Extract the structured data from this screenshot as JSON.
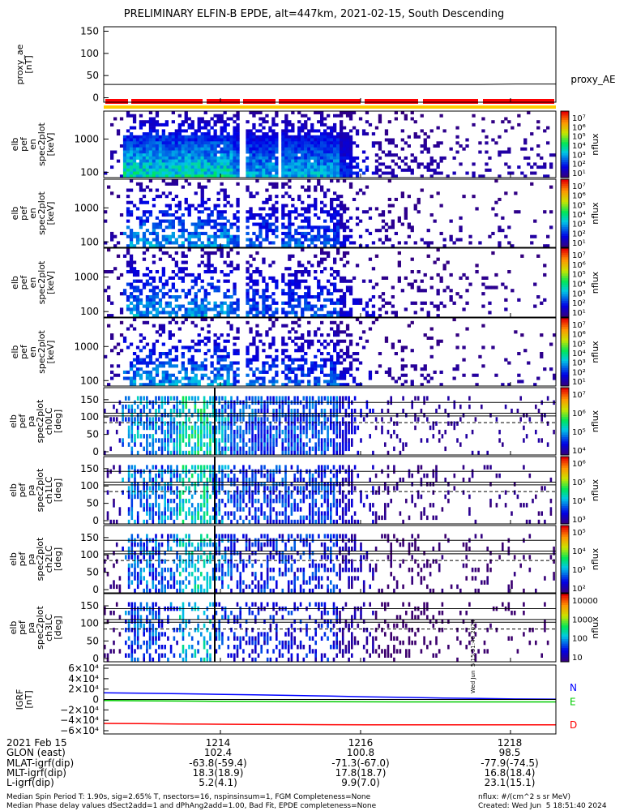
{
  "title": "PRELIMINARY ELFIN-B EPDE, alt=447km, 2021-02-15, South Descending",
  "chart_data": {
    "type": "heatmap",
    "title": "PRELIMINARY ELFIN-B EPDE, alt=447km, 2021-02-15, South Descending",
    "x_ticks": [
      "1214",
      "1216",
      "1218"
    ],
    "panels": [
      {
        "id": "proxy_ae",
        "type": "line",
        "ylabel": [
          "proxy_ae",
          "[nT]"
        ],
        "yticks": [
          "150",
          "100",
          "50",
          "0"
        ],
        "ylim": [
          -10,
          160
        ],
        "legend": "proxy_AE",
        "series": [
          {
            "name": "proxy_AE",
            "values": [
              30,
              30,
              30,
              30,
              30,
              30,
              30,
              30,
              30,
              30,
              30,
              31,
              31
            ]
          }
        ]
      },
      {
        "id": "en1",
        "type": "heatmap",
        "ylabel": [
          "elb",
          "pef",
          "en",
          "spec2plot",
          "[keV]"
        ],
        "yticks": [
          "1000",
          "100"
        ],
        "yscale": "log",
        "zlabel": "nflux",
        "zticks": [
          "10⁷",
          "10⁶",
          "10⁵",
          "10⁴",
          "10³",
          "10²",
          "10¹"
        ]
      },
      {
        "id": "en2",
        "type": "heatmap",
        "ylabel": [
          "elb",
          "pef",
          "en",
          "spec2plot",
          "[keV]"
        ],
        "yticks": [
          "1000",
          "100"
        ],
        "yscale": "log",
        "zlabel": "nflux",
        "zticks": [
          "10⁷",
          "10⁶",
          "10⁵",
          "10⁴",
          "10³",
          "10²",
          "10¹"
        ]
      },
      {
        "id": "en3",
        "type": "heatmap",
        "ylabel": [
          "elb",
          "pef",
          "en",
          "spec2plot",
          "[keV]"
        ],
        "yticks": [
          "1000",
          "100"
        ],
        "yscale": "log",
        "zlabel": "nflux",
        "zticks": [
          "10⁷",
          "10⁶",
          "10⁵",
          "10⁴",
          "10³",
          "10²",
          "10¹"
        ]
      },
      {
        "id": "en4",
        "type": "heatmap",
        "ylabel": [
          "elb",
          "pef",
          "en",
          "spec2plot",
          "[keV]"
        ],
        "yticks": [
          "1000",
          "100"
        ],
        "yscale": "log",
        "zlabel": "nflux",
        "zticks": [
          "10⁷",
          "10⁶",
          "10⁵",
          "10⁴",
          "10³",
          "10²",
          "10¹"
        ]
      },
      {
        "id": "pa0",
        "type": "heatmap",
        "ylabel": [
          "elb",
          "pef",
          "pa",
          "spec2plot",
          "ch0LC",
          "[deg]"
        ],
        "yticks": [
          "150",
          "100",
          "50",
          "0"
        ],
        "ylim": [
          0,
          180
        ],
        "zlabel": "nflux",
        "zticks": [
          "10⁷",
          "10⁶",
          "10⁵",
          "10⁴"
        ]
      },
      {
        "id": "pa1",
        "type": "heatmap",
        "ylabel": [
          "elb",
          "pef",
          "pa",
          "spec2plot",
          "ch1LC",
          "[deg]"
        ],
        "yticks": [
          "150",
          "100",
          "50",
          "0"
        ],
        "ylim": [
          0,
          180
        ],
        "zlabel": "nflux",
        "zticks": [
          "10⁶",
          "10⁵",
          "10⁴",
          "10³"
        ]
      },
      {
        "id": "pa2",
        "type": "heatmap",
        "ylabel": [
          "elb",
          "pef",
          "pa",
          "spec2plot",
          "ch2LC",
          "[deg]"
        ],
        "yticks": [
          "150",
          "100",
          "50",
          "0"
        ],
        "ylim": [
          0,
          180
        ],
        "zlabel": "nflux",
        "zticks": [
          "10⁵",
          "10⁴",
          "10³",
          "10²"
        ]
      },
      {
        "id": "pa3",
        "type": "heatmap",
        "ylabel": [
          "elb",
          "pef",
          "pa",
          "spec2plot",
          "ch3LC",
          "[deg]"
        ],
        "yticks": [
          "150",
          "100",
          "50",
          "0"
        ],
        "ylim": [
          0,
          180
        ],
        "zlabel": "nflux",
        "zticks": [
          "10000",
          "1000",
          "100",
          "10"
        ]
      },
      {
        "id": "igrf",
        "type": "line",
        "ylabel": [
          "IGRF",
          "[nT]"
        ],
        "yticks": [
          "6×10⁴",
          "4×10⁴",
          "2×10⁴",
          "0",
          "−2×10⁴",
          "−4×10⁴",
          "−6×10⁴"
        ],
        "ylim": [
          -60000,
          60000
        ],
        "series": [
          {
            "name": "N",
            "color": "#0000ff",
            "values": [
              13000,
              12000,
              11000,
              10000,
              9000,
              7800,
              6500,
              5200,
              4000,
              2800,
              1800,
              1000,
              600
            ]
          },
          {
            "name": "E",
            "color": "#00cc00",
            "values": [
              -2000,
              -2500,
              -3000,
              -3400,
              -3800,
              -4100,
              -4300,
              -4500,
              -4600,
              -4700,
              -4700,
              -4700,
              -4700
            ]
          },
          {
            "name": "D",
            "color": "#ff0000",
            "values": [
              -46000,
              -46500,
              -47000,
              -47500,
              -48000,
              -48200,
              -48400,
              -48600,
              -48700,
              -48800,
              -48800,
              -48800,
              -48800
            ]
          }
        ]
      }
    ]
  },
  "side_stamp": "Wed Jun  5 15:51:40 2024",
  "ephem": {
    "rows": [
      {
        "label": "2021 Feb 15",
        "v1": "1214",
        "v2": "1216",
        "v3": "1218"
      },
      {
        "label": "GLON (east)",
        "v1": "102.4",
        "v2": "100.8",
        "v3": "98.5"
      },
      {
        "label": "MLAT-igrf(dip)",
        "v1": "-63.8(-59.4)",
        "v2": "-71.3(-67.0)",
        "v3": "-77.9(-74.5)"
      },
      {
        "label": "MLT-igrf(dip)",
        "v1": "18.3(18.9)",
        "v2": "17.8(18.7)",
        "v3": "16.8(18.4)"
      },
      {
        "label": "L-igrf(dip)",
        "v1": "5.2(4.1)",
        "v2": "9.9(7.0)",
        "v3": "23.1(15.1)"
      }
    ]
  },
  "footer": {
    "left1": "Median Spin Period T: 1.90s, sig=2.65% T, nsectors=16, nspinsinsum=1, FGM Completeness=None",
    "left2": "Median Phase delay values dSect2add=1 and dPhAng2add=1.00, Bad Fit, EPDE completeness=None",
    "right1": "nflux: #/(cm^2 s sr MeV)",
    "right2": "Created: Wed Jun  5 18:51:40 2024"
  }
}
